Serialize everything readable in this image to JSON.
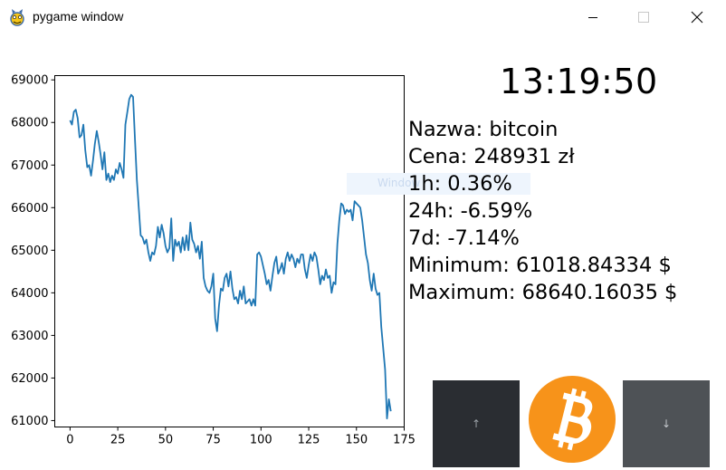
{
  "window": {
    "title": "pygame window"
  },
  "clock": "13:19:50",
  "info": {
    "name": "Nazwa: bitcoin",
    "price": "Cena: 248931 zł",
    "h1": "1h: 0.36%",
    "h24": "24h: -6.59%",
    "d7": "7d: -7.14%",
    "minimum": "Minimum: 61018.84334 $",
    "maximum": "Maximum: 68640.16035 $"
  },
  "buttons": {
    "up": "↑",
    "down": "↓"
  },
  "ghost_overlay": "Window",
  "colors": {
    "line": "#1f77b4",
    "up_button": "#2a2d32",
    "down_button": "#4e5256",
    "bitcoin": "#f7931a"
  },
  "icons": {
    "app": "pygame-snake-icon",
    "minimize": "minimize-icon",
    "maximize": "maximize-icon",
    "close": "close-icon",
    "logo": "bitcoin-logo-icon"
  },
  "chart_data": {
    "type": "line",
    "xlim": [
      -8,
      175
    ],
    "ylim": [
      60850,
      69100
    ],
    "xticks": [
      0,
      25,
      50,
      75,
      100,
      125,
      150,
      175
    ],
    "yticks": [
      61000,
      62000,
      63000,
      64000,
      65000,
      66000,
      67000,
      68000,
      69000
    ],
    "grid": false,
    "x_start": 0,
    "series": [
      {
        "values": [
          68050,
          67950,
          68250,
          68300,
          68100,
          67650,
          67700,
          67950,
          67350,
          66950,
          67000,
          66750,
          67100,
          67500,
          67800,
          67550,
          67250,
          66900,
          67300,
          66650,
          66800,
          66600,
          66750,
          66650,
          66900,
          66800,
          67050,
          66900,
          66700,
          67950,
          68250,
          68550,
          68650,
          68600,
          67600,
          66650,
          66000,
          65350,
          65300,
          65150,
          65250,
          64950,
          64750,
          64950,
          64900,
          65100,
          65550,
          65300,
          65600,
          65400,
          65100,
          64950,
          65050,
          65750,
          64750,
          65250,
          65100,
          65200,
          64950,
          65300,
          65000,
          65350,
          65000,
          65650,
          65250,
          65150,
          64950,
          65100,
          64800,
          65200,
          64350,
          64150,
          64050,
          64000,
          64150,
          64450,
          63400,
          63100,
          63700,
          64100,
          64050,
          64350,
          64450,
          64150,
          64500,
          64100,
          63850,
          63900,
          63750,
          64050,
          63850,
          64150,
          63750,
          63800,
          63850,
          63700,
          63850,
          63700,
          64900,
          64950,
          64850,
          64650,
          64450,
          64200,
          64300,
          64050,
          64400,
          64700,
          64850,
          64450,
          64550,
          64700,
          64450,
          64800,
          64950,
          64750,
          64900,
          64800,
          64600,
          64800,
          64700,
          64900,
          64900,
          64550,
          64350,
          64650,
          64900,
          64750,
          64950,
          64850,
          64550,
          64200,
          64400,
          64300,
          64550,
          64350,
          64400,
          64000,
          64250,
          64200,
          65150,
          65700,
          66100,
          66050,
          65850,
          65950,
          65900,
          65950,
          65700,
          66150,
          66100,
          66050,
          66000,
          65700,
          65300,
          64900,
          64700,
          64300,
          64050,
          64450,
          64100,
          63950,
          64000,
          63200,
          62700,
          62200,
          61050,
          61500,
          61220
        ]
      }
    ]
  }
}
